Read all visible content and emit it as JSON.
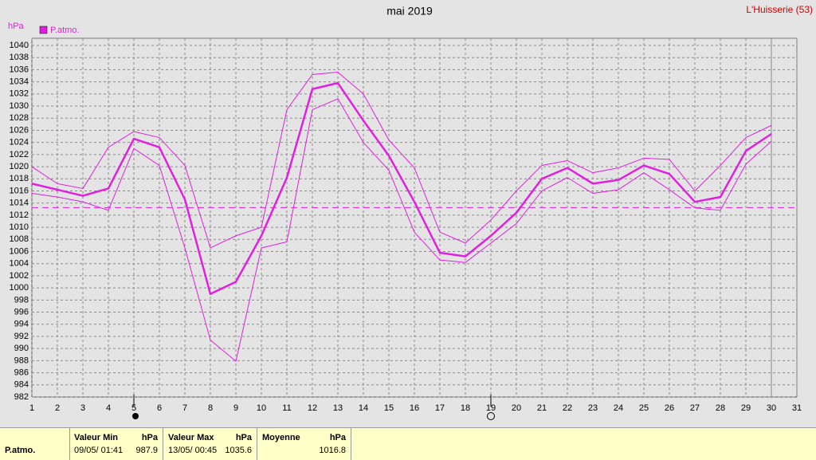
{
  "chart_data": {
    "type": "line",
    "title": "mai 2019",
    "location": "L'Huisserie (53)",
    "y_label": "hPa",
    "legend": "P.atmo.",
    "x": [
      1,
      2,
      3,
      4,
      5,
      6,
      7,
      8,
      9,
      10,
      11,
      12,
      13,
      14,
      15,
      16,
      17,
      18,
      19,
      20,
      21,
      22,
      23,
      24,
      25,
      26,
      27,
      28,
      29,
      30
    ],
    "series": [
      {
        "color": "#e020e0",
        "line_width": 2.5,
        "values": [
          1017.2,
          1016.2,
          1015.2,
          1016.4,
          1024.6,
          1023.2,
          1014.6,
          999,
          1001,
          1008.6,
          1018.2,
          1032.8,
          1033.8,
          1027.6,
          1021.8,
          1014.2,
          1005.8,
          1005.2,
          1008.6,
          1012.4,
          1018,
          1019.8,
          1017.2,
          1017.8,
          1020.2,
          1018.8,
          1014.2,
          1015,
          1022.6,
          1025.4
        ]
      },
      {
        "color": "#e020e0",
        "line_width": 1,
        "values": [
          1020,
          1017.2,
          1016.4,
          1023.2,
          1025.8,
          1024.8,
          1020.2,
          1006.6,
          1008.6,
          1010,
          1029.4,
          1035.2,
          1035.6,
          1032,
          1024.4,
          1019.8,
          1009.2,
          1007.4,
          1011.2,
          1016,
          1020.2,
          1021,
          1019,
          1019.8,
          1021.4,
          1021.2,
          1016,
          1020.2,
          1024.8,
          1026.8
        ]
      },
      {
        "color": "#e020e0",
        "line_width": 1,
        "values": [
          1015.6,
          1015,
          1014.2,
          1012.8,
          1023,
          1020.2,
          1006.6,
          991.4,
          987.9,
          1006.6,
          1007.6,
          1029.4,
          1031.2,
          1024,
          1019.4,
          1009.2,
          1004.6,
          1004.2,
          1007.4,
          1010.6,
          1016,
          1018.2,
          1015.6,
          1016.2,
          1019,
          1016.2,
          1013.2,
          1012.8,
          1020.4,
          1024.2
        ]
      }
    ],
    "reference_line": 1013.25,
    "xlim": [
      1,
      31
    ],
    "xticks": [
      1,
      2,
      3,
      4,
      5,
      6,
      7,
      8,
      9,
      10,
      11,
      12,
      13,
      14,
      15,
      16,
      17,
      18,
      19,
      20,
      21,
      22,
      23,
      24,
      25,
      26,
      27,
      28,
      29,
      30,
      31
    ],
    "ylim": [
      982,
      1040
    ],
    "yticks": [
      982,
      984,
      986,
      988,
      990,
      992,
      994,
      996,
      998,
      1000,
      1002,
      1004,
      1006,
      1008,
      1010,
      1012,
      1014,
      1016,
      1018,
      1020,
      1022,
      1024,
      1026,
      1028,
      1030,
      1032,
      1034,
      1036,
      1038,
      1040
    ],
    "grid": true
  },
  "summary": {
    "name": "P.atmo.",
    "min": {
      "title": "Valeur Min",
      "unit": "hPa",
      "date": "09/05/ 01:41",
      "value": "987.9"
    },
    "max": {
      "title": "Valeur Max",
      "unit": "hPa",
      "date": "13/05/ 00:45",
      "value": "1035.6"
    },
    "mean": {
      "title": "Moyenne",
      "unit": "hPa",
      "value": "1016.8"
    }
  }
}
